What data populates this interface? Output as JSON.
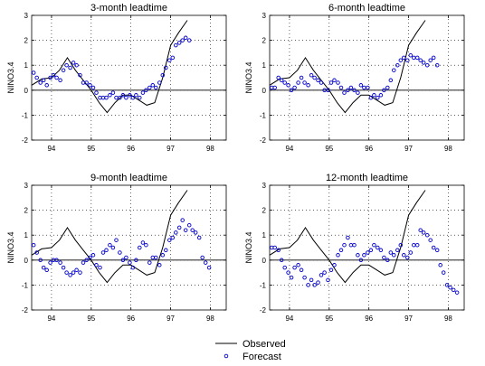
{
  "figure": {
    "legend": {
      "observed_label": "Observed",
      "forecast_label": "Forecast"
    },
    "colors": {
      "observed": "#000000",
      "forecast": "#0000cc",
      "zero_line": "#000000",
      "grid": "#000000"
    }
  },
  "chart_data": [
    {
      "type": "line",
      "title": "3-month leadtime",
      "xlabel": "",
      "ylabel": "NINO3.4",
      "xlim": [
        1993.5,
        1998.4
      ],
      "ylim": [
        -2,
        3
      ],
      "xticks": [
        94,
        95,
        96,
        97,
        98
      ],
      "xtick_values": [
        1994,
        1995,
        1996,
        1997,
        1998
      ],
      "yticks": [
        -2,
        -1,
        0,
        1,
        2,
        3
      ],
      "grid": true,
      "series": [
        {
          "name": "Observed",
          "style": "line",
          "x": [
            1993.5,
            1993.75,
            1994.0,
            1994.2,
            1994.4,
            1994.6,
            1994.8,
            1995.0,
            1995.2,
            1995.4,
            1995.6,
            1995.8,
            1996.0,
            1996.2,
            1996.4,
            1996.6,
            1996.8,
            1997.0,
            1997.2,
            1997.42
          ],
          "y": [
            0.2,
            0.45,
            0.5,
            0.8,
            1.3,
            0.8,
            0.4,
            0.0,
            -0.5,
            -0.9,
            -0.5,
            -0.2,
            -0.2,
            -0.4,
            -0.6,
            -0.5,
            0.5,
            1.8,
            2.3,
            2.8
          ]
        },
        {
          "name": "Forecast",
          "style": "markers",
          "x": [
            1993.55,
            1993.63,
            1993.72,
            1993.8,
            1993.88,
            1993.97,
            1994.05,
            1994.13,
            1994.22,
            1994.3,
            1994.38,
            1994.47,
            1994.55,
            1994.63,
            1994.72,
            1994.8,
            1994.88,
            1994.97,
            1995.05,
            1995.13,
            1995.22,
            1995.3,
            1995.38,
            1995.47,
            1995.55,
            1995.63,
            1995.72,
            1995.8,
            1995.88,
            1995.97,
            1996.05,
            1996.13,
            1996.22,
            1996.3,
            1996.38,
            1996.47,
            1996.55,
            1996.63,
            1996.72,
            1996.8,
            1996.88,
            1996.97,
            1997.05,
            1997.13,
            1997.22,
            1997.3,
            1997.38,
            1997.47
          ],
          "y": [
            0.7,
            0.5,
            0.3,
            0.4,
            0.2,
            0.5,
            0.6,
            0.5,
            0.4,
            0.8,
            1.0,
            0.9,
            1.1,
            1.0,
            0.6,
            0.3,
            0.3,
            0.2,
            0.1,
            -0.1,
            -0.3,
            -0.3,
            -0.3,
            -0.2,
            -0.1,
            -0.3,
            -0.3,
            -0.2,
            -0.3,
            -0.2,
            -0.3,
            -0.2,
            -0.3,
            -0.1,
            0.0,
            0.1,
            0.2,
            0.1,
            0.3,
            0.6,
            0.9,
            1.2,
            1.3,
            1.8,
            1.9,
            2.0,
            2.1,
            2.0
          ]
        }
      ]
    },
    {
      "type": "line",
      "title": "6-month leadtime",
      "xlabel": "",
      "ylabel": "NINO3.4",
      "xlim": [
        1993.5,
        1998.4
      ],
      "ylim": [
        -2,
        3
      ],
      "xticks": [
        94,
        95,
        96,
        97,
        98
      ],
      "xtick_values": [
        1994,
        1995,
        1996,
        1997,
        1998
      ],
      "yticks": [
        -2,
        -1,
        0,
        1,
        2,
        3
      ],
      "grid": true,
      "series": [
        {
          "name": "Observed",
          "style": "line",
          "x": [
            1993.5,
            1993.75,
            1994.0,
            1994.2,
            1994.4,
            1994.6,
            1994.8,
            1995.0,
            1995.2,
            1995.4,
            1995.6,
            1995.8,
            1996.0,
            1996.2,
            1996.4,
            1996.6,
            1996.8,
            1997.0,
            1997.2,
            1997.42
          ],
          "y": [
            0.2,
            0.45,
            0.5,
            0.8,
            1.3,
            0.8,
            0.4,
            0.0,
            -0.5,
            -0.9,
            -0.5,
            -0.2,
            -0.2,
            -0.4,
            -0.6,
            -0.5,
            0.5,
            1.8,
            2.3,
            2.8
          ]
        },
        {
          "name": "Forecast",
          "style": "markers",
          "x": [
            1993.55,
            1993.63,
            1993.72,
            1993.8,
            1993.88,
            1993.97,
            1994.05,
            1994.13,
            1994.22,
            1994.3,
            1994.38,
            1994.47,
            1994.55,
            1994.63,
            1994.72,
            1994.8,
            1994.88,
            1994.97,
            1995.05,
            1995.13,
            1995.22,
            1995.3,
            1995.38,
            1995.47,
            1995.55,
            1995.63,
            1995.72,
            1995.8,
            1995.88,
            1995.97,
            1996.05,
            1996.13,
            1996.22,
            1996.3,
            1996.38,
            1996.47,
            1996.55,
            1996.63,
            1996.72,
            1996.8,
            1996.88,
            1996.97,
            1997.05,
            1997.13,
            1997.22,
            1997.3,
            1997.38,
            1997.47,
            1997.55,
            1997.63,
            1997.72
          ],
          "y": [
            0.1,
            0.1,
            0.5,
            0.4,
            0.3,
            0.2,
            0.0,
            0.1,
            0.3,
            0.5,
            0.3,
            0.2,
            0.6,
            0.5,
            0.4,
            0.3,
            0.0,
            0.0,
            0.3,
            0.4,
            0.3,
            0.1,
            -0.1,
            0.0,
            0.1,
            0.0,
            -0.1,
            0.2,
            0.1,
            0.1,
            -0.3,
            -0.2,
            -0.3,
            -0.2,
            0.0,
            0.1,
            0.4,
            0.8,
            1.0,
            1.2,
            1.3,
            1.2,
            1.4,
            1.3,
            1.3,
            1.2,
            1.1,
            1.0,
            1.2,
            1.3,
            1.0
          ]
        }
      ]
    },
    {
      "type": "line",
      "title": "9-month leadtime",
      "xlabel": "",
      "ylabel": "NINO3.4",
      "xlim": [
        1993.5,
        1998.4
      ],
      "ylim": [
        -2,
        3
      ],
      "xticks": [
        94,
        95,
        96,
        97,
        98
      ],
      "xtick_values": [
        1994,
        1995,
        1996,
        1997,
        1998
      ],
      "yticks": [
        -2,
        -1,
        0,
        1,
        2,
        3
      ],
      "grid": true,
      "series": [
        {
          "name": "Observed",
          "style": "line",
          "x": [
            1993.5,
            1993.75,
            1994.0,
            1994.2,
            1994.4,
            1994.6,
            1994.8,
            1995.0,
            1995.2,
            1995.4,
            1995.6,
            1995.8,
            1996.0,
            1996.2,
            1996.4,
            1996.6,
            1996.8,
            1997.0,
            1997.2,
            1997.42
          ],
          "y": [
            0.2,
            0.45,
            0.5,
            0.8,
            1.3,
            0.8,
            0.4,
            0.0,
            -0.5,
            -0.9,
            -0.5,
            -0.2,
            -0.2,
            -0.4,
            -0.6,
            -0.5,
            0.5,
            1.8,
            2.3,
            2.8
          ]
        },
        {
          "name": "Forecast",
          "style": "markers",
          "x": [
            1993.55,
            1993.63,
            1993.72,
            1993.8,
            1993.88,
            1993.97,
            1994.05,
            1994.13,
            1994.22,
            1994.3,
            1994.38,
            1994.47,
            1994.55,
            1994.63,
            1994.72,
            1994.8,
            1994.88,
            1994.97,
            1995.05,
            1995.13,
            1995.22,
            1995.3,
            1995.38,
            1995.47,
            1995.55,
            1995.63,
            1995.72,
            1995.8,
            1995.88,
            1995.97,
            1996.05,
            1996.13,
            1996.22,
            1996.3,
            1996.38,
            1996.47,
            1996.55,
            1996.63,
            1996.72,
            1996.8,
            1996.88,
            1996.97,
            1997.05,
            1997.13,
            1997.22,
            1997.3,
            1997.38,
            1997.47,
            1997.55,
            1997.63,
            1997.72,
            1997.8,
            1997.88,
            1997.97
          ],
          "y": [
            0.6,
            0.3,
            0.0,
            -0.3,
            -0.4,
            -0.1,
            0.0,
            0.0,
            -0.1,
            -0.3,
            -0.5,
            -0.6,
            -0.5,
            -0.4,
            -0.5,
            -0.1,
            0.0,
            0.1,
            0.2,
            -0.2,
            -0.3,
            0.3,
            0.4,
            0.6,
            0.5,
            0.8,
            0.3,
            0.0,
            0.1,
            -0.1,
            -0.3,
            0.0,
            0.5,
            0.7,
            0.6,
            -0.1,
            0.1,
            0.1,
            -0.2,
            0.2,
            0.4,
            0.8,
            0.9,
            1.1,
            1.3,
            1.6,
            1.2,
            1.4,
            1.2,
            1.1,
            0.9,
            0.1,
            -0.1,
            -0.3
          ]
        }
      ]
    },
    {
      "type": "line",
      "title": "12-month leadtime",
      "xlabel": "",
      "ylabel": "NINO3.4",
      "xlim": [
        1993.5,
        1998.4
      ],
      "ylim": [
        -2,
        3
      ],
      "xticks": [
        94,
        95,
        96,
        97,
        98
      ],
      "xtick_values": [
        1994,
        1995,
        1996,
        1997,
        1998
      ],
      "yticks": [
        -2,
        -1,
        0,
        1,
        2,
        3
      ],
      "grid": true,
      "series": [
        {
          "name": "Observed",
          "style": "line",
          "x": [
            1993.5,
            1993.75,
            1994.0,
            1994.2,
            1994.4,
            1994.6,
            1994.8,
            1995.0,
            1995.2,
            1995.4,
            1995.6,
            1995.8,
            1996.0,
            1996.2,
            1996.4,
            1996.6,
            1996.8,
            1997.0,
            1997.2,
            1997.42
          ],
          "y": [
            0.2,
            0.45,
            0.5,
            0.8,
            1.3,
            0.8,
            0.4,
            0.0,
            -0.5,
            -0.9,
            -0.5,
            -0.2,
            -0.2,
            -0.4,
            -0.6,
            -0.5,
            0.5,
            1.8,
            2.3,
            2.8
          ]
        },
        {
          "name": "Forecast",
          "style": "markers",
          "x": [
            1993.55,
            1993.63,
            1993.72,
            1993.8,
            1993.88,
            1993.97,
            1994.05,
            1994.13,
            1994.22,
            1994.3,
            1994.38,
            1994.47,
            1994.55,
            1994.63,
            1994.72,
            1994.8,
            1994.88,
            1994.97,
            1995.05,
            1995.13,
            1995.22,
            1995.3,
            1995.38,
            1995.47,
            1995.55,
            1995.63,
            1995.72,
            1995.8,
            1995.88,
            1995.97,
            1996.05,
            1996.13,
            1996.22,
            1996.3,
            1996.38,
            1996.47,
            1996.55,
            1996.63,
            1996.72,
            1996.8,
            1996.88,
            1996.97,
            1997.05,
            1997.13,
            1997.22,
            1997.3,
            1997.38,
            1997.47,
            1997.55,
            1997.63,
            1997.72,
            1997.8,
            1997.88,
            1997.97,
            1998.05,
            1998.13,
            1998.22
          ],
          "y": [
            0.5,
            0.5,
            0.4,
            0.0,
            -0.3,
            -0.5,
            -0.7,
            -0.3,
            -0.2,
            -0.4,
            -0.7,
            -1.0,
            -0.8,
            -1.0,
            -0.9,
            -0.6,
            -0.5,
            -0.8,
            -0.4,
            -0.2,
            0.2,
            0.4,
            0.6,
            0.9,
            0.6,
            0.6,
            0.2,
            0.0,
            0.2,
            0.3,
            0.4,
            0.6,
            0.5,
            0.4,
            0.1,
            0.0,
            0.3,
            0.2,
            0.4,
            0.6,
            0.2,
            0.1,
            0.3,
            0.6,
            0.6,
            1.2,
            1.1,
            1.0,
            0.8,
            0.5,
            0.4,
            -0.2,
            -0.5,
            -1.0,
            -1.1,
            -1.2,
            -1.3
          ]
        }
      ]
    }
  ]
}
